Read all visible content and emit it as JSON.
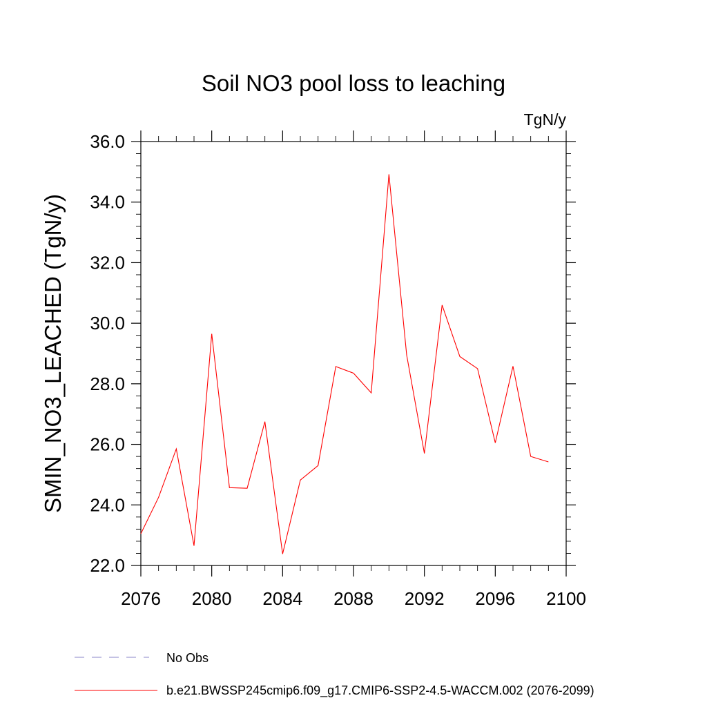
{
  "chart_data": {
    "type": "line",
    "title": "Soil NO3 pool loss to leaching",
    "units_label": "TgN/y",
    "ylabel": "SMIN_NO3_LEACHED  (TgN/y)",
    "xlabel": "",
    "xlim": [
      2076,
      2100
    ],
    "ylim": [
      22.0,
      36.0
    ],
    "xticks": [
      2076,
      2080,
      2084,
      2088,
      2092,
      2096,
      2100
    ],
    "xtick_labels": [
      "2076",
      "2080",
      "2084",
      "2088",
      "2092",
      "2096",
      "2100"
    ],
    "yticks": [
      22.0,
      24.0,
      26.0,
      28.0,
      30.0,
      32.0,
      34.0,
      36.0
    ],
    "ytick_labels": [
      "22.0",
      "24.0",
      "26.0",
      "28.0",
      "30.0",
      "32.0",
      "34.0",
      "36.0"
    ],
    "grid": false,
    "legend_position": "bottom-left",
    "series": [
      {
        "name": "b.e21.BWSSP245cmip6.f09_g17.CMIP6-SSP2-4.5-WACCM.002 (2076-2099)",
        "color": "#ff0000",
        "style": "solid",
        "x": [
          2076,
          2077,
          2078,
          2079,
          2080,
          2081,
          2082,
          2083,
          2084,
          2085,
          2086,
          2087,
          2088,
          2089,
          2090,
          2091,
          2092,
          2093,
          2094,
          2095,
          2096,
          2097,
          2098,
          2099
        ],
        "values": [
          23.05,
          24.25,
          25.85,
          22.65,
          29.65,
          24.57,
          24.55,
          26.75,
          22.38,
          24.82,
          25.3,
          28.57,
          28.35,
          27.7,
          34.92,
          28.95,
          25.7,
          30.6,
          28.9,
          28.5,
          26.05,
          28.58,
          25.6,
          25.42
        ]
      }
    ],
    "legend": [
      {
        "label": "No Obs",
        "color": "#8a86c8",
        "style": "dashed"
      },
      {
        "label": "b.e21.BWSSP245cmip6.f09_g17.CMIP6-SSP2-4.5-WACCM.002 (2076-2099)",
        "color": "#ff0000",
        "style": "solid"
      }
    ]
  }
}
